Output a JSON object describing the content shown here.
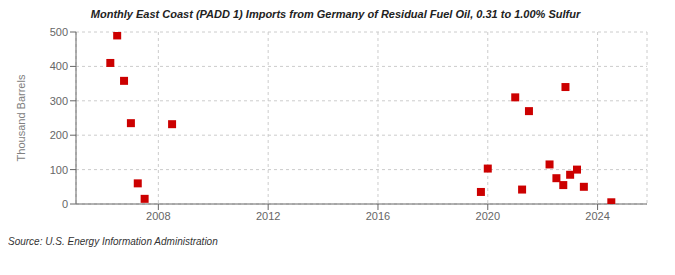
{
  "chart_data": {
    "type": "scatter",
    "title": "Monthly East Coast (PADD 1) Imports from Germany of Residual Fuel Oil, 0.31 to 1.00% Sulfur",
    "ylabel": "Thousand Barrels",
    "source": "Source: U.S. Energy Information Administration",
    "x": [
      2006.25,
      2006.5,
      2006.75,
      2007.0,
      2007.25,
      2007.5,
      2008.5,
      2019.75,
      2020.0,
      2021.0,
      2021.25,
      2021.5,
      2022.25,
      2022.5,
      2022.75,
      2022.83,
      2023.0,
      2023.25,
      2023.5,
      2024.5
    ],
    "values": [
      410,
      490,
      358,
      235,
      60,
      15,
      232,
      35,
      103,
      310,
      42,
      270,
      115,
      75,
      55,
      340,
      85,
      100,
      50,
      5
    ],
    "color": "#cc0000",
    "marker": "square",
    "xlim": [
      2005.0,
      2025.8
    ],
    "xticks": [
      2008,
      2012,
      2016,
      2020,
      2024
    ],
    "ylim": [
      0,
      500
    ],
    "yticks": [
      0,
      100,
      200,
      300,
      400,
      500
    ],
    "grid": true
  }
}
